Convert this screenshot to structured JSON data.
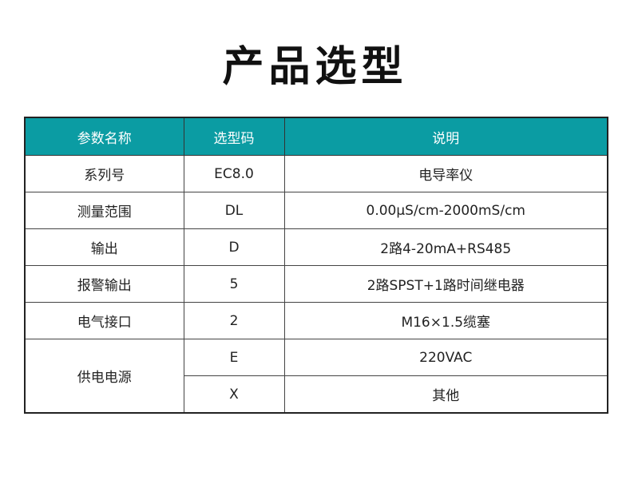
{
  "title": "产品选型",
  "accent_color": "#0b9ca3",
  "table": {
    "headers": [
      "参数名称",
      "选型码",
      "说明"
    ],
    "rows": [
      {
        "param": "系列号",
        "code": "EC8.0",
        "desc": "电导率仪"
      },
      {
        "param": "测量范围",
        "code": "DL",
        "desc": "0.00μS/cm-2000mS/cm"
      },
      {
        "param": "输出",
        "code": "D",
        "desc": "2路4-20mA+RS485"
      },
      {
        "param": "报警输出",
        "code": "5",
        "desc": "2路SPST+1路时间继电器"
      },
      {
        "param": "电气接口",
        "code": "2",
        "desc": "M16×1.5缆塞"
      },
      {
        "param": "供电电源",
        "code": "E",
        "desc": "220VAC"
      },
      {
        "param": "",
        "code": "X",
        "desc": "其他"
      }
    ]
  }
}
